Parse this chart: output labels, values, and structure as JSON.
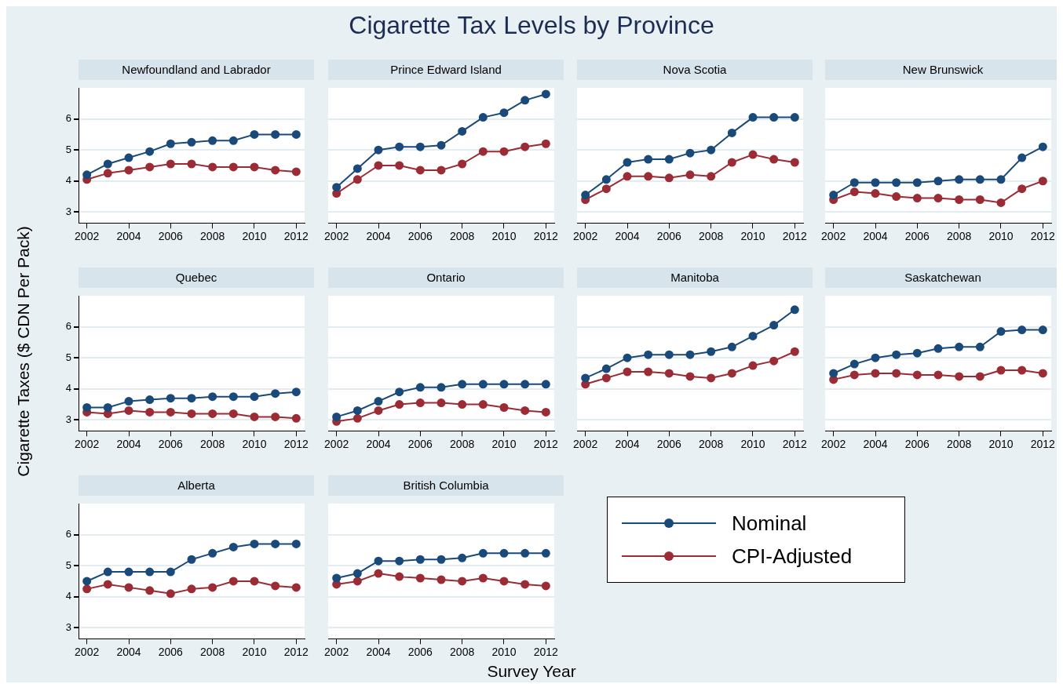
{
  "chart_data": [
    {
      "type": "other",
      "title": "Cigarette Tax Levels by Province",
      "xlabel": "Survey Year",
      "ylabel": "Cigarette Taxes ($ CDN Per Pack)"
    },
    {
      "type": "line",
      "title": "Newfoundland and Labrador",
      "x": [
        2002,
        2003,
        2004,
        2005,
        2006,
        2007,
        2008,
        2009,
        2010,
        2011,
        2012
      ],
      "xlim": [
        2001.6,
        2012.4
      ],
      "xticks": [
        2002,
        2004,
        2006,
        2008,
        2010,
        2012
      ],
      "ylim": [
        2.65,
        7
      ],
      "yticks": [
        3,
        4,
        5,
        6
      ],
      "grid": "y",
      "marker": "circle",
      "series": [
        {
          "color": "#1a4a7a",
          "values": [
            4.2,
            4.55,
            4.75,
            4.95,
            5.2,
            5.25,
            5.3,
            5.3,
            5.5,
            5.5,
            5.5
          ]
        },
        {
          "color": "#9b2c35",
          "values": [
            4.05,
            4.25,
            4.35,
            4.45,
            4.55,
            4.55,
            4.45,
            4.45,
            4.45,
            4.35,
            4.3
          ]
        }
      ]
    },
    {
      "type": "line",
      "title": "Prince Edward Island",
      "x": [
        2002,
        2003,
        2004,
        2005,
        2006,
        2007,
        2008,
        2009,
        2010,
        2011,
        2012
      ],
      "xlim": [
        2001.6,
        2012.4
      ],
      "xticks": [
        2002,
        2004,
        2006,
        2008,
        2010,
        2012
      ],
      "ylim": [
        2.65,
        7
      ],
      "yticks": [
        3,
        4,
        5,
        6
      ],
      "grid": "y",
      "marker": "circle",
      "tick_labels": "x",
      "series": [
        {
          "color": "#1a4a7a",
          "values": [
            3.8,
            4.4,
            5.0,
            5.1,
            5.1,
            5.15,
            5.6,
            6.05,
            6.2,
            6.6,
            6.8
          ]
        },
        {
          "color": "#9b2c35",
          "values": [
            3.6,
            4.05,
            4.5,
            4.5,
            4.35,
            4.35,
            4.55,
            4.95,
            4.95,
            5.1,
            5.2
          ]
        }
      ]
    },
    {
      "type": "line",
      "title": "Nova Scotia",
      "x": [
        2002,
        2003,
        2004,
        2005,
        2006,
        2007,
        2008,
        2009,
        2010,
        2011,
        2012
      ],
      "xlim": [
        2001.6,
        2012.4
      ],
      "xticks": [
        2002,
        2004,
        2006,
        2008,
        2010,
        2012
      ],
      "ylim": [
        2.65,
        7
      ],
      "yticks": [
        3,
        4,
        5,
        6
      ],
      "grid": "y",
      "marker": "circle",
      "tick_labels": "x",
      "series": [
        {
          "color": "#1a4a7a",
          "values": [
            3.55,
            4.05,
            4.6,
            4.7,
            4.7,
            4.9,
            5.0,
            5.55,
            6.05,
            6.05,
            6.05
          ]
        },
        {
          "color": "#9b2c35",
          "values": [
            3.4,
            3.75,
            4.15,
            4.15,
            4.1,
            4.2,
            4.15,
            4.6,
            4.85,
            4.7,
            4.6
          ]
        }
      ]
    },
    {
      "type": "line",
      "title": "New Brunswick",
      "x": [
        2002,
        2003,
        2004,
        2005,
        2006,
        2007,
        2008,
        2009,
        2010,
        2011,
        2012
      ],
      "xlim": [
        2001.6,
        2012.4
      ],
      "xticks": [
        2002,
        2004,
        2006,
        2008,
        2010,
        2012
      ],
      "ylim": [
        2.65,
        7
      ],
      "yticks": [
        3,
        4,
        5,
        6
      ],
      "grid": "y",
      "marker": "circle",
      "tick_labels": "x",
      "series": [
        {
          "color": "#1a4a7a",
          "values": [
            3.55,
            3.95,
            3.95,
            3.95,
            3.95,
            4.0,
            4.05,
            4.05,
            4.05,
            4.75,
            5.1
          ]
        },
        {
          "color": "#9b2c35",
          "values": [
            3.4,
            3.65,
            3.6,
            3.5,
            3.45,
            3.45,
            3.4,
            3.4,
            3.3,
            3.75,
            4.0
          ]
        }
      ]
    },
    {
      "type": "line",
      "title": "Quebec",
      "x": [
        2002,
        2003,
        2004,
        2005,
        2006,
        2007,
        2008,
        2009,
        2010,
        2011,
        2012
      ],
      "xlim": [
        2001.6,
        2012.4
      ],
      "xticks": [
        2002,
        2004,
        2006,
        2008,
        2010,
        2012
      ],
      "ylim": [
        2.65,
        7
      ],
      "yticks": [
        3,
        4,
        5,
        6
      ],
      "grid": "y",
      "marker": "circle",
      "series": [
        {
          "color": "#1a4a7a",
          "values": [
            3.4,
            3.4,
            3.6,
            3.65,
            3.7,
            3.7,
            3.75,
            3.75,
            3.75,
            3.85,
            3.9
          ]
        },
        {
          "color": "#9b2c35",
          "values": [
            3.25,
            3.2,
            3.3,
            3.25,
            3.25,
            3.2,
            3.2,
            3.2,
            3.1,
            3.1,
            3.05
          ]
        }
      ]
    },
    {
      "type": "line",
      "title": "Ontario",
      "x": [
        2002,
        2003,
        2004,
        2005,
        2006,
        2007,
        2008,
        2009,
        2010,
        2011,
        2012
      ],
      "xlim": [
        2001.6,
        2012.4
      ],
      "xticks": [
        2002,
        2004,
        2006,
        2008,
        2010,
        2012
      ],
      "ylim": [
        2.65,
        7
      ],
      "yticks": [
        3,
        4,
        5,
        6
      ],
      "grid": "y",
      "marker": "circle",
      "tick_labels": "x",
      "series": [
        {
          "color": "#1a4a7a",
          "values": [
            3.1,
            3.3,
            3.6,
            3.9,
            4.05,
            4.05,
            4.15,
            4.15,
            4.15,
            4.15,
            4.15
          ]
        },
        {
          "color": "#9b2c35",
          "values": [
            2.95,
            3.05,
            3.3,
            3.5,
            3.55,
            3.55,
            3.5,
            3.5,
            3.4,
            3.3,
            3.25
          ]
        }
      ]
    },
    {
      "type": "line",
      "title": "Manitoba",
      "x": [
        2002,
        2003,
        2004,
        2005,
        2006,
        2007,
        2008,
        2009,
        2010,
        2011,
        2012
      ],
      "xlim": [
        2001.6,
        2012.4
      ],
      "xticks": [
        2002,
        2004,
        2006,
        2008,
        2010,
        2012
      ],
      "ylim": [
        2.65,
        7
      ],
      "yticks": [
        3,
        4,
        5,
        6
      ],
      "grid": "y",
      "marker": "circle",
      "tick_labels": "x",
      "series": [
        {
          "color": "#1a4a7a",
          "values": [
            4.35,
            4.65,
            5.0,
            5.1,
            5.1,
            5.1,
            5.2,
            5.35,
            5.7,
            6.05,
            6.55
          ]
        },
        {
          "color": "#9b2c35",
          "values": [
            4.15,
            4.35,
            4.55,
            4.55,
            4.5,
            4.4,
            4.35,
            4.5,
            4.75,
            4.9,
            5.2
          ]
        }
      ]
    },
    {
      "type": "line",
      "title": "Saskatchewan",
      "x": [
        2002,
        2003,
        2004,
        2005,
        2006,
        2007,
        2008,
        2009,
        2010,
        2011,
        2012
      ],
      "xlim": [
        2001.6,
        2012.4
      ],
      "xticks": [
        2002,
        2004,
        2006,
        2008,
        2010,
        2012
      ],
      "ylim": [
        2.65,
        7
      ],
      "yticks": [
        3,
        4,
        5,
        6
      ],
      "grid": "y",
      "marker": "circle",
      "tick_labels": "x",
      "series": [
        {
          "color": "#1a4a7a",
          "values": [
            4.5,
            4.8,
            5.0,
            5.1,
            5.15,
            5.3,
            5.35,
            5.35,
            5.85,
            5.9,
            5.9
          ]
        },
        {
          "color": "#9b2c35",
          "values": [
            4.3,
            4.45,
            4.5,
            4.5,
            4.45,
            4.45,
            4.4,
            4.4,
            4.6,
            4.6,
            4.5
          ]
        }
      ]
    },
    {
      "type": "line",
      "title": "Alberta",
      "x": [
        2002,
        2003,
        2004,
        2005,
        2006,
        2007,
        2008,
        2009,
        2010,
        2011,
        2012
      ],
      "xlim": [
        2001.6,
        2012.4
      ],
      "xticks": [
        2002,
        2004,
        2006,
        2008,
        2010,
        2012
      ],
      "ylim": [
        2.65,
        7
      ],
      "yticks": [
        3,
        4,
        5,
        6
      ],
      "grid": "y",
      "marker": "circle",
      "series": [
        {
          "color": "#1a4a7a",
          "values": [
            4.5,
            4.8,
            4.8,
            4.8,
            4.8,
            5.2,
            5.4,
            5.6,
            5.7,
            5.7,
            5.7
          ]
        },
        {
          "color": "#9b2c35",
          "values": [
            4.25,
            4.4,
            4.3,
            4.2,
            4.1,
            4.25,
            4.3,
            4.5,
            4.5,
            4.35,
            4.3
          ]
        }
      ]
    },
    {
      "type": "line",
      "title": "British Columbia",
      "x": [
        2002,
        2003,
        2004,
        2005,
        2006,
        2007,
        2008,
        2009,
        2010,
        2011,
        2012
      ],
      "xlim": [
        2001.6,
        2012.4
      ],
      "xticks": [
        2002,
        2004,
        2006,
        2008,
        2010,
        2012
      ],
      "ylim": [
        2.65,
        7
      ],
      "yticks": [
        3,
        4,
        5,
        6
      ],
      "grid": "y",
      "marker": "circle",
      "tick_labels": "x",
      "legend": "right",
      "series": [
        {
          "name": "Nominal",
          "color": "#1a4a7a",
          "values": [
            4.6,
            4.75,
            5.15,
            5.15,
            5.2,
            5.2,
            5.25,
            5.4,
            5.4,
            5.4,
            5.4
          ]
        },
        {
          "name": "CPI-Adjusted",
          "color": "#9b2c35",
          "values": [
            4.4,
            4.5,
            4.75,
            4.65,
            4.6,
            4.55,
            4.5,
            4.6,
            4.5,
            4.4,
            4.35
          ]
        }
      ]
    }
  ]
}
